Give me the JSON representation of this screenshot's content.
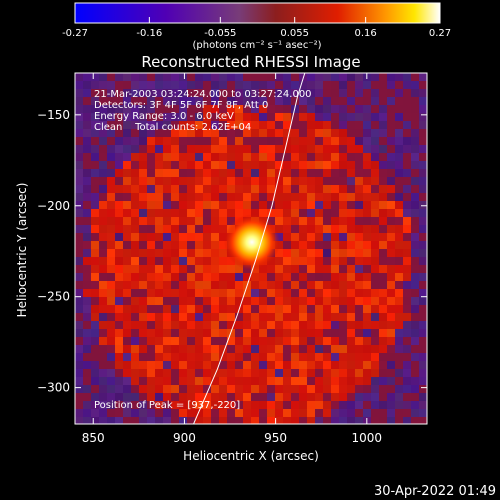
{
  "chart_data": {
    "type": "heatmap",
    "title": "Reconstructed RHESSI Image",
    "xlabel": "Heliocentric X (arcsec)",
    "ylabel": "Heliocentric Y (arcsec)",
    "xlim": [
      840,
      1033
    ],
    "ylim": [
      -320,
      -127
    ],
    "x_ticks": [
      850,
      900,
      950,
      1000
    ],
    "y_ticks": [
      -150,
      -200,
      -250,
      -300
    ],
    "colorbar": {
      "label": "(photons cm⁻² s⁻¹ asec⁻²)",
      "range": [
        -0.27,
        0.27
      ],
      "ticks": [
        -0.27,
        -0.16,
        -0.055,
        0.055,
        0.16,
        0.27
      ],
      "tick_labels": [
        "-0.27",
        "-0.16",
        "-0.055",
        "0.055",
        "0.16",
        "0.27"
      ]
    },
    "info_lines": [
      "21-Mar-2003 03:24:24.000 to 03:27:24.000",
      "Detectors: 3F 4F 5F 6F 7F 8F, Att 0",
      "Energy Range: 3.0 - 6.0 keV",
      "Clean    Total counts: 2.62E+04"
    ],
    "peak_label": "Position of Peak = [937,-220]",
    "peak": {
      "x": 937,
      "y": -220,
      "value": 0.27
    },
    "limb_curve": [
      [
        905,
        -320
      ],
      [
        918,
        -290
      ],
      [
        929,
        -260
      ],
      [
        939,
        -230
      ],
      [
        948,
        -200
      ],
      [
        955,
        -170
      ],
      [
        962,
        -140
      ],
      [
        966,
        -127
      ]
    ],
    "timestamp": "30-Apr-2022 01:49"
  }
}
